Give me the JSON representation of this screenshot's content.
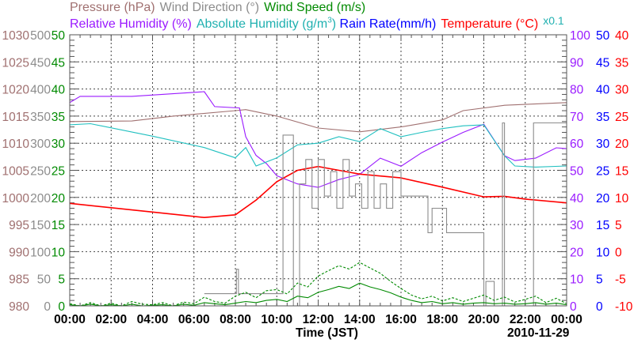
{
  "chart_data": {
    "type": "line",
    "legend": {
      "pressure": "Pressure (hPa)",
      "wind_direction": "Wind Direction (°)",
      "wind_speed": "Wind Speed (m/s)",
      "relative_humidity": "Relative Humidity (%)",
      "absolute_humidity_prefix": "Absolute Humidity (g/m",
      "absolute_humidity_sup": "3",
      "absolute_humidity_suffix": ")",
      "rain_rate": "Rain Rate(mm/h)",
      "temperature": "Temperature (°C)",
      "abs_humidity_scale_note": "x0.1"
    },
    "xlabel": "Time (JST)",
    "date": "2010-11-29",
    "x_range_hours": [
      0,
      24
    ],
    "x_ticks": [
      "00:00",
      "02:00",
      "04:00",
      "06:00",
      "08:00",
      "10:00",
      "12:00",
      "14:00",
      "16:00",
      "18:00",
      "20:00",
      "22:00",
      "00:00"
    ],
    "grid": true,
    "axes": {
      "pressure": {
        "min": 980,
        "max": 1030,
        "step": 5,
        "color": "#a07070",
        "side": "left"
      },
      "wind_direction": {
        "min": 0,
        "max": 500,
        "step": 50,
        "color": "#8c8c8c",
        "side": "left"
      },
      "wind_speed": {
        "min": 0,
        "max": 50,
        "step": 5,
        "color": "#008a00",
        "side": "left"
      },
      "relative_humidity": {
        "min": 0,
        "max": 100,
        "step": 10,
        "color": "#9a1aff",
        "side": "right"
      },
      "rain_rate": {
        "min": 0,
        "max": 50,
        "step": 5,
        "color": "#0000ff",
        "side": "right"
      },
      "temperature": {
        "min": -10,
        "max": 40,
        "step": 5,
        "color": "#ff0000",
        "side": "right"
      }
    },
    "series": [
      {
        "name": "Pressure",
        "axis": "pressure",
        "color": "#a07070",
        "x": [
          0,
          3,
          5,
          8,
          8.5,
          10,
          12,
          14,
          16,
          18,
          19,
          21,
          24
        ],
        "y": [
          1014.0,
          1014.1,
          1015.0,
          1016.0,
          1016.2,
          1015.0,
          1012.8,
          1012.1,
          1013.0,
          1014.3,
          1016.0,
          1017.0,
          1017.5
        ]
      },
      {
        "name": "Relative Humidity",
        "axis": "relative_humidity",
        "color": "#9a1aff",
        "x": [
          0,
          0.5,
          3,
          6.5,
          7,
          8.2,
          8.5,
          9,
          9.5,
          10,
          11,
          12,
          13,
          14,
          15,
          16,
          17,
          18,
          19,
          20,
          21,
          21.5,
          22.5,
          23.5,
          24
        ],
        "y": [
          75,
          77.3,
          77.3,
          79,
          73.5,
          73,
          62.4,
          55.5,
          52.5,
          48,
          45,
          43.7,
          46.6,
          48.5,
          54.5,
          51.5,
          56.5,
          60.4,
          64,
          67,
          55.4,
          53.6,
          54.5,
          58.3,
          58
        ]
      },
      {
        "name": "Absolute Humidity (x0.1 on 0-50 axis)",
        "axis": "rain_rate",
        "color": "#20c0c0",
        "x": [
          0,
          1,
          4,
          6.5,
          8,
          8.5,
          9,
          10,
          11,
          12,
          13,
          14,
          15,
          16,
          17,
          18,
          19,
          20,
          21,
          21.5,
          22.5,
          24
        ],
        "y": [
          33.4,
          33.6,
          31.3,
          29.2,
          27.3,
          29.2,
          25.8,
          27.3,
          29.7,
          30,
          31.2,
          30.3,
          32.7,
          31.2,
          32,
          32.7,
          33.2,
          33.4,
          27.7,
          25.8,
          25.6,
          25.8
        ]
      },
      {
        "name": "Temperature",
        "axis": "temperature",
        "color": "#ff0000",
        "x": [
          0,
          4,
          6.5,
          8,
          9,
          10,
          11,
          12,
          13,
          14,
          16,
          18,
          20,
          21,
          22,
          24
        ],
        "y": [
          8.9,
          7.3,
          6.3,
          6.8,
          9.5,
          12.9,
          15,
          15.7,
          15,
          14.3,
          13.6,
          11.9,
          10.1,
          10.2,
          9.7,
          9.0
        ]
      },
      {
        "name": "Wind Direction",
        "axis": "wind_direction",
        "color": "#8c8c8c",
        "step": true,
        "x": [
          6.5,
          8.05,
          8.15,
          8.3,
          10.3,
          10.8,
          11.1,
          11.4,
          11.7,
          12,
          12.3,
          12.6,
          12.9,
          13.2,
          13.5,
          13.8,
          14.1,
          14.4,
          14.7,
          15,
          15.3,
          15.6,
          16,
          17.3,
          17.5,
          18.2,
          20,
          20.1,
          20.5,
          20.9,
          21.0,
          21.2,
          22.4,
          24
        ],
        "y": [
          22.5,
          67.5,
          22.5,
          22.5,
          315,
          0,
          225,
          270,
          180,
          270,
          202.5,
          247.5,
          180,
          270,
          202.5,
          225,
          180,
          247.5,
          180,
          225,
          180,
          247.5,
          202.5,
          135,
          180,
          135,
          0,
          45,
          0,
          337.5,
          0,
          0,
          337.5,
          337.5
        ]
      },
      {
        "name": "Wind Speed (mean)",
        "axis": "wind_speed",
        "color": "#008a00",
        "x": [
          0,
          0.5,
          1,
          1.5,
          2,
          2.5,
          3,
          3.5,
          4,
          4.5,
          5,
          5.5,
          6,
          6.5,
          7,
          7.5,
          8,
          8.5,
          9,
          9.5,
          10,
          10.5,
          11,
          11.5,
          12,
          12.5,
          13,
          13.5,
          14,
          14.5,
          15,
          15.5,
          16,
          16.5,
          17,
          17.5,
          18,
          18.5,
          19,
          19.5,
          20,
          20.5,
          21,
          21.5,
          22,
          22.5,
          23,
          23.5,
          24
        ],
        "y": [
          0.2,
          0,
          0.3,
          0,
          0.2,
          0,
          0.3,
          0,
          0.1,
          0.2,
          0,
          0.3,
          0.1,
          0.6,
          0.4,
          0.2,
          0.5,
          0.8,
          0.6,
          1.0,
          1.2,
          0.8,
          1.8,
          1.5,
          2.5,
          3.0,
          3.6,
          3.2,
          4.2,
          3.5,
          3.0,
          2.4,
          1.6,
          1.0,
          0.6,
          0.8,
          0.4,
          0.6,
          0.3,
          0.5,
          0.6,
          0.4,
          0.5,
          0.3,
          0.4,
          0.6,
          0.3,
          0.5,
          0.2
        ]
      },
      {
        "name": "Wind Speed (gust)",
        "axis": "wind_speed",
        "color": "#008a00",
        "dashed": true,
        "x": [
          0,
          0.5,
          1,
          1.5,
          2,
          2.5,
          3,
          3.5,
          4,
          4.5,
          5,
          5.5,
          6,
          6.5,
          7,
          7.5,
          8,
          8.5,
          9,
          9.5,
          10,
          10.5,
          11,
          11.5,
          12,
          12.5,
          13,
          13.5,
          14,
          14.5,
          15,
          15.5,
          16,
          16.5,
          17,
          17.5,
          18,
          18.5,
          19,
          19.5,
          20,
          20.5,
          21,
          21.5,
          22,
          22.5,
          23,
          23.5,
          24
        ],
        "y": [
          0.4,
          0,
          0.6,
          0,
          0.5,
          0,
          0.8,
          0.3,
          0.2,
          0.6,
          0,
          0.7,
          0.4,
          1.6,
          0.8,
          0.5,
          1.8,
          2.5,
          1.5,
          2.8,
          3.0,
          2.2,
          4.2,
          3.5,
          5.5,
          6.5,
          7.4,
          6.8,
          8.0,
          7.0,
          6.0,
          4.5,
          3.2,
          2.0,
          1.3,
          1.8,
          0.9,
          1.5,
          0.8,
          1.4,
          2.0,
          1.0,
          1.6,
          0.7,
          1.2,
          1.8,
          0.6,
          1.4,
          0.4
        ]
      },
      {
        "name": "Rain Rate",
        "axis": "rain_rate",
        "color": "#0000ff",
        "x": [
          0,
          24
        ],
        "y": [
          0,
          0
        ]
      }
    ]
  }
}
